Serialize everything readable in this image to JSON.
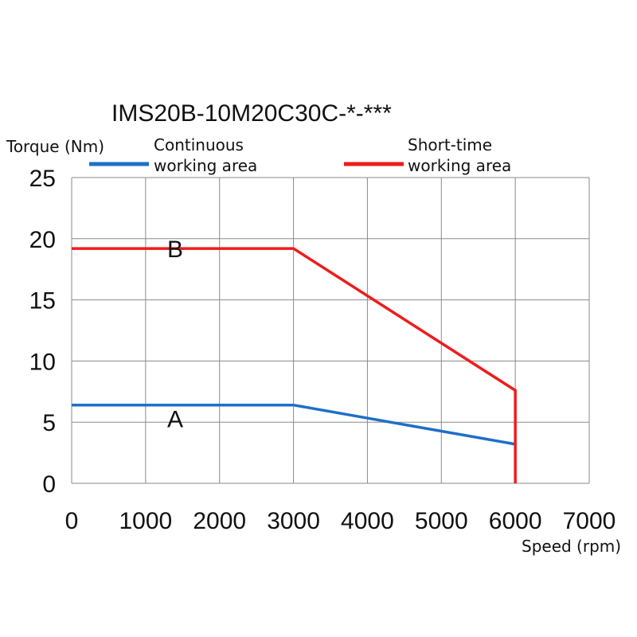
{
  "chart_data": {
    "type": "line",
    "title": "IMS20B-10M20C30C-*-***",
    "xlabel": "Speed (rpm)",
    "ylabel": "Torque (Nm)",
    "xlim": [
      0,
      7000
    ],
    "ylim": [
      0,
      25
    ],
    "xticks": [
      "0",
      "1000",
      "2000",
      "3000",
      "4000",
      "5000",
      "6000",
      "7000"
    ],
    "yticks": [
      "0",
      "5",
      "10",
      "15",
      "20",
      "25"
    ],
    "grid": true,
    "legend_position": "top",
    "series": [
      {
        "name": "Continuous working area",
        "legend_lines": [
          "Continuous",
          "working area"
        ],
        "color": "#1e6fc8",
        "label": "A",
        "points": [
          [
            0,
            6.4
          ],
          [
            3000,
            6.4
          ],
          [
            6000,
            3.2
          ]
        ]
      },
      {
        "name": "Short-time working area",
        "legend_lines": [
          "Short-time",
          "working area"
        ],
        "color": "#ee1c1c",
        "label": "B",
        "points": [
          [
            0,
            19.2
          ],
          [
            3000,
            19.2
          ],
          [
            6000,
            7.6
          ],
          [
            6000,
            0
          ]
        ]
      }
    ]
  }
}
